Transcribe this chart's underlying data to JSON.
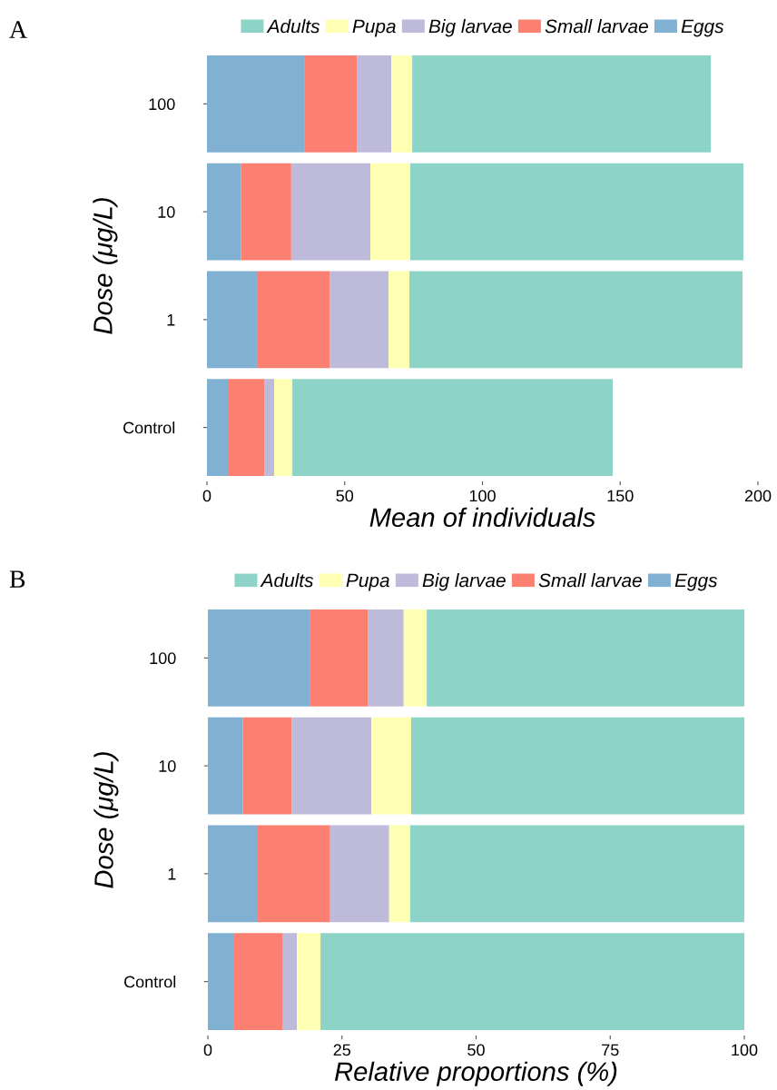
{
  "chart_data": [
    {
      "type": "bar",
      "orientation": "horizontal",
      "stacked": true,
      "categories": [
        "100",
        "10",
        "1",
        "Control"
      ],
      "xlabel": "Mean of individuals",
      "ylabel": "Dose (μg/L)",
      "xlim": [
        0,
        200
      ],
      "xticks": [
        0,
        50,
        100,
        150,
        200
      ],
      "grid": false,
      "legend": "top",
      "annotations": [
        "A"
      ],
      "series": [
        {
          "name": "Eggs",
          "color": "#80b1d3",
          "values": [
            35.3,
            12.4,
            18.1,
            7.6
          ]
        },
        {
          "name": "Small larvae",
          "color": "#fb8072",
          "values": [
            19.1,
            18.2,
            26.4,
            13.2
          ]
        },
        {
          "name": "Big larvae",
          "color": "#bebada",
          "values": [
            12.5,
            28.7,
            21.4,
            3.6
          ]
        },
        {
          "name": "Pupa",
          "color": "#ffffb3",
          "values": [
            7.6,
            14.5,
            7.6,
            6.6
          ]
        },
        {
          "name": "Adults",
          "color": "#8dd3c7",
          "values": [
            108.4,
            120.9,
            120.9,
            116.3
          ]
        }
      ]
    },
    {
      "type": "bar",
      "orientation": "horizontal",
      "stacked": true,
      "categories": [
        "100",
        "10",
        "1",
        "Control"
      ],
      "xlabel": "Relative proportions (%)",
      "ylabel": "Dose (μg/L)",
      "xlim": [
        0,
        100
      ],
      "xticks": [
        0,
        25,
        50,
        75,
        100
      ],
      "grid": false,
      "legend": "top",
      "annotations": [
        "B"
      ],
      "series": [
        {
          "name": "Eggs",
          "color": "#80b1d3",
          "values": [
            19.1,
            6.5,
            9.3,
            4.9
          ]
        },
        {
          "name": "Small larvae",
          "color": "#fb8072",
          "values": [
            10.7,
            9.1,
            13.5,
            9.1
          ]
        },
        {
          "name": "Big larvae",
          "color": "#bebada",
          "values": [
            6.7,
            14.9,
            11.0,
            2.6
          ]
        },
        {
          "name": "Pupa",
          "color": "#ffffb3",
          "values": [
            4.3,
            7.4,
            3.9,
            4.4
          ]
        },
        {
          "name": "Adults",
          "color": "#8dd3c7",
          "values": [
            59.2,
            62.1,
            62.3,
            79.0
          ]
        }
      ]
    }
  ]
}
